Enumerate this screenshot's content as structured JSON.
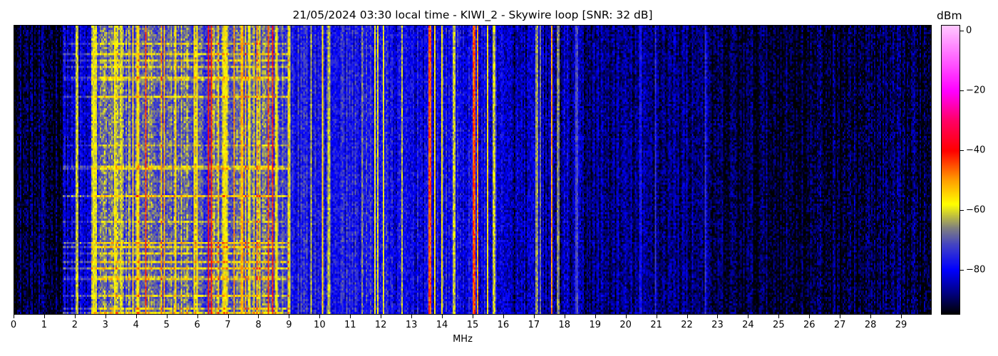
{
  "chart_data": {
    "type": "heatmap",
    "title": "21/05/2024 03:30 local time - KIWI_2 - Skywire loop [SNR: 32 dB]",
    "xlabel": "MHz",
    "ylabel": "",
    "xlim": [
      0,
      30
    ],
    "x_ticks": [
      0,
      1,
      2,
      3,
      4,
      5,
      6,
      7,
      8,
      9,
      10,
      11,
      12,
      13,
      14,
      15,
      16,
      17,
      18,
      19,
      20,
      21,
      22,
      23,
      24,
      25,
      26,
      27,
      28,
      29
    ],
    "colorbar": {
      "label": "dBm",
      "range": [
        -95,
        2
      ],
      "ticks": [
        0,
        -20,
        -40,
        -60,
        -80
      ],
      "tick_labels": [
        "0",
        "−20",
        "−40",
        "−60",
        "−80"
      ],
      "colormap": [
        {
          "v": -95,
          "c": "#000000"
        },
        {
          "v": -88,
          "c": "#000080"
        },
        {
          "v": -80,
          "c": "#0000ff"
        },
        {
          "v": -72,
          "c": "#4040c8"
        },
        {
          "v": -66,
          "c": "#808080"
        },
        {
          "v": -58,
          "c": "#ffff00"
        },
        {
          "v": -50,
          "c": "#ffa000"
        },
        {
          "v": -40,
          "c": "#ff0000"
        },
        {
          "v": -30,
          "c": "#ff0064"
        },
        {
          "v": -20,
          "c": "#ff00ff"
        },
        {
          "v": 2,
          "c": "#ffc8ff"
        }
      ]
    },
    "noise_floor": [
      {
        "from": 0,
        "to": 1.6,
        "dbm": -92
      },
      {
        "from": 1.6,
        "to": 2.5,
        "dbm": -84
      },
      {
        "from": 2.5,
        "to": 9.0,
        "dbm": -70
      },
      {
        "from": 9.0,
        "to": 12.2,
        "dbm": -77
      },
      {
        "from": 12.2,
        "to": 16.0,
        "dbm": -80
      },
      {
        "from": 16.0,
        "to": 18.6,
        "dbm": -86
      },
      {
        "from": 18.6,
        "to": 22.7,
        "dbm": -88
      },
      {
        "from": 22.7,
        "to": 30,
        "dbm": -92
      }
    ],
    "carriers": [
      [
        2.05,
        -62
      ],
      [
        2.6,
        -58
      ],
      [
        2.65,
        -60
      ],
      [
        3.3,
        -58
      ],
      [
        3.5,
        -62
      ],
      [
        3.9,
        -55
      ],
      [
        4.05,
        -58
      ],
      [
        4.3,
        -45
      ],
      [
        4.9,
        -52
      ],
      [
        5.3,
        -55
      ],
      [
        5.9,
        -55
      ],
      [
        6.0,
        -56
      ],
      [
        6.35,
        -40
      ],
      [
        6.45,
        -42
      ],
      [
        6.9,
        -58
      ],
      [
        7.2,
        -50
      ],
      [
        7.45,
        -52
      ],
      [
        7.7,
        -58
      ],
      [
        8.3,
        -45
      ],
      [
        8.45,
        -42
      ],
      [
        8.6,
        -58
      ],
      [
        9.0,
        -60
      ],
      [
        9.7,
        -62
      ],
      [
        10.1,
        -55
      ],
      [
        10.3,
        -62
      ],
      [
        11.4,
        -66
      ],
      [
        11.8,
        -58
      ],
      [
        11.9,
        -60
      ],
      [
        12.1,
        -58
      ],
      [
        12.7,
        -62
      ],
      [
        13.6,
        -45
      ],
      [
        13.75,
        -55
      ],
      [
        14.0,
        -58
      ],
      [
        14.4,
        -62
      ],
      [
        15.05,
        -45
      ],
      [
        15.15,
        -50
      ],
      [
        15.5,
        -55
      ],
      [
        15.7,
        -62
      ],
      [
        17.1,
        -65
      ],
      [
        17.2,
        -68
      ],
      [
        17.6,
        -50
      ],
      [
        17.8,
        -66
      ],
      [
        18.4,
        -72
      ],
      [
        20.5,
        -78
      ],
      [
        21.0,
        -75
      ],
      [
        22.6,
        -75
      ]
    ]
  }
}
